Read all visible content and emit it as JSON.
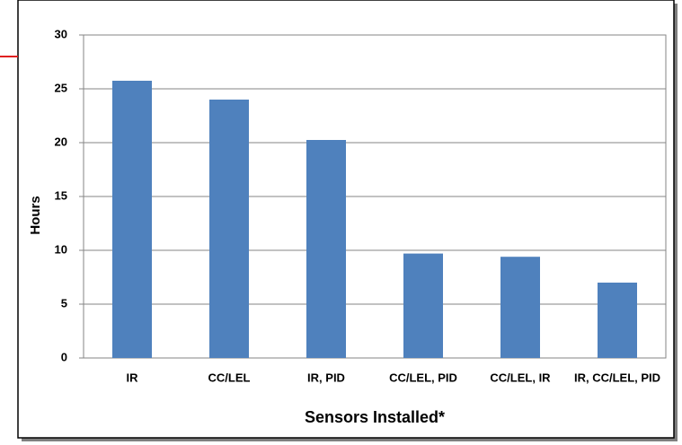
{
  "chart_data": {
    "type": "bar",
    "categories": [
      "IR",
      "CC/LEL",
      "IR, PID",
      "CC/LEL, PID",
      "CC/LEL, IR",
      "IR, CC/LEL, PID"
    ],
    "values": [
      25.75,
      24.0,
      20.25,
      9.7,
      9.4,
      7.0
    ],
    "color": "#4f81bd",
    "ylim": [
      0,
      30
    ],
    "yticks": [
      0,
      5,
      10,
      15,
      20,
      25,
      30
    ],
    "grid": true,
    "ylabel": "Hours",
    "xlabel": "Sensors Installed*"
  }
}
